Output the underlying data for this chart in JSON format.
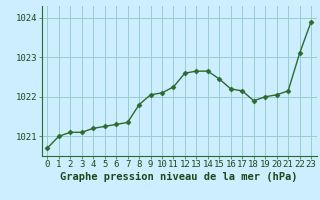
{
  "x": [
    0,
    1,
    2,
    3,
    4,
    5,
    6,
    7,
    8,
    9,
    10,
    11,
    12,
    13,
    14,
    15,
    16,
    17,
    18,
    19,
    20,
    21,
    22,
    23
  ],
  "y": [
    1020.7,
    1021.0,
    1021.1,
    1021.1,
    1021.2,
    1021.25,
    1021.3,
    1021.35,
    1021.8,
    1022.05,
    1022.1,
    1022.25,
    1022.6,
    1022.65,
    1022.65,
    1022.45,
    1022.2,
    1022.15,
    1021.9,
    1022.0,
    1022.05,
    1022.15,
    1023.1,
    1023.9
  ],
  "line_color": "#2d6a2d",
  "marker": "D",
  "marker_size": 2.5,
  "bg_color": "#cceeff",
  "grid_color": "#99cccc",
  "xlabel": "Graphe pression niveau de la mer (hPa)",
  "xlabel_fontsize": 7.5,
  "xlabel_color": "#1a4a1a",
  "tick_color": "#1a4a1a",
  "ylim": [
    1020.5,
    1024.3
  ],
  "yticks": [
    1021,
    1022,
    1023,
    1024
  ],
  "xticks": [
    0,
    1,
    2,
    3,
    4,
    5,
    6,
    7,
    8,
    9,
    10,
    11,
    12,
    13,
    14,
    15,
    16,
    17,
    18,
    19,
    20,
    21,
    22,
    23
  ],
  "tick_fontsize": 6.5,
  "axis_color": "#2d6a2d",
  "linewidth": 1.0
}
